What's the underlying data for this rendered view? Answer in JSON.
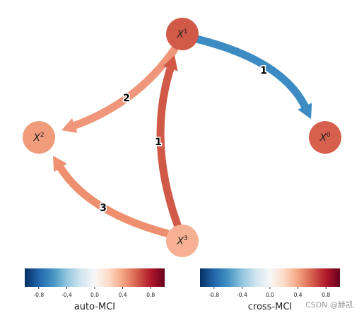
{
  "nodes": [
    {
      "base": "X",
      "sup": "1",
      "color": "#d05a47"
    },
    {
      "base": "X",
      "sup": "0",
      "color": "#d6604d"
    },
    {
      "base": "X",
      "sup": "2",
      "color": "#f09c7b"
    },
    {
      "base": "X",
      "sup": "3",
      "color": "#f6b093"
    }
  ],
  "edges": [
    {
      "from": 1,
      "to": 0,
      "label": "1",
      "color": "#3c8bc2"
    },
    {
      "from": 1,
      "to": 2,
      "label": "2",
      "color": "#f0967a"
    },
    {
      "from": 3,
      "to": 1,
      "label": "1",
      "color": "#d05a47"
    },
    {
      "from": 3,
      "to": 2,
      "label": "3",
      "color": "#ee9070"
    }
  ],
  "colorbars": [
    {
      "label": "auto-MCI",
      "lim": [
        -1,
        1
      ],
      "ticks": [
        -0.8,
        -0.4,
        {
          "value": 0,
          "label": "0.0"
        },
        0.4,
        0.8
      ]
    },
    {
      "label": "cross-MCI",
      "lim": [
        -1,
        1
      ],
      "ticks": [
        -0.8,
        -0.4,
        {
          "value": 0,
          "label": "0.0"
        },
        0.4,
        0.8
      ]
    }
  ],
  "watermark": "CSDN @赫凯"
}
